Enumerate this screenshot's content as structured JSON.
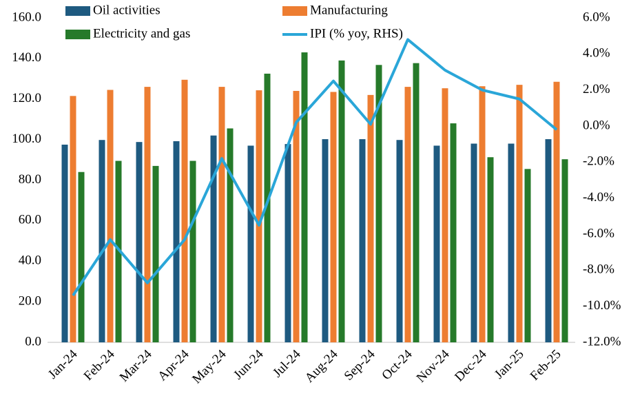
{
  "chart_data": {
    "type": "bar_line",
    "categories": [
      "Jan-24",
      "Feb-24",
      "Mar-24",
      "Apr-24",
      "May-24",
      "Jun-24",
      "Jul-24",
      "Aug-24",
      "Sep-24",
      "Oct-24",
      "Nov-24",
      "Dec-24",
      "Jan-25",
      "Feb-25"
    ],
    "series": [
      {
        "name": "Oil activities",
        "color": "#1e5a80",
        "type": "bar",
        "values": [
          97.5,
          99.8,
          98.8,
          99.2,
          102,
          97,
          97.8,
          100.2,
          100.2,
          99.8,
          97,
          98,
          98,
          100.2
        ]
      },
      {
        "name": "Manufacturing",
        "color": "#ed7d31",
        "type": "bar",
        "values": [
          121.5,
          124.5,
          126,
          129.5,
          126,
          124.3,
          124,
          123.5,
          122,
          126,
          125.3,
          126.3,
          127,
          128.5
        ]
      },
      {
        "name": "Electricity and gas",
        "color": "#267a2a",
        "type": "bar",
        "values": [
          84,
          89.5,
          87,
          89.5,
          105.5,
          132.5,
          143,
          139,
          136.8,
          137.7,
          108,
          91.3,
          85.5,
          90.3
        ]
      },
      {
        "name": "IPI (% yoy, RHS)",
        "color": "#2aa6d8",
        "type": "line",
        "axis": "y2",
        "values": [
          -9.4,
          -6.3,
          -8.7,
          -6.3,
          -1.8,
          -5.5,
          0.2,
          2.5,
          0.1,
          4.8,
          3.1,
          2.0,
          1.5,
          -0.2
        ]
      }
    ],
    "ylim": [
      0,
      160
    ],
    "yticks": [
      {
        "value": 0,
        "label": "0.0"
      },
      {
        "value": 20,
        "label": "20.0"
      },
      {
        "value": 40,
        "label": "40.0"
      },
      {
        "value": 60,
        "label": "60.0"
      },
      {
        "value": 80,
        "label": "80.0"
      },
      {
        "value": 100,
        "label": "100.0"
      },
      {
        "value": 120,
        "label": "120.0"
      },
      {
        "value": 140,
        "label": "140.0"
      },
      {
        "value": 160,
        "label": "160.0"
      }
    ],
    "y2lim": [
      -12,
      6
    ],
    "y2ticks": [
      {
        "value": -12,
        "label": "-12.0%"
      },
      {
        "value": -10,
        "label": "-10.0%"
      },
      {
        "value": -8,
        "label": "-8.0%"
      },
      {
        "value": -6,
        "label": "-6.0%"
      },
      {
        "value": -4,
        "label": "-4.0%"
      },
      {
        "value": -2,
        "label": "-2.0%"
      },
      {
        "value": 0,
        "label": "0.0%"
      },
      {
        "value": 2,
        "label": "2.0%"
      },
      {
        "value": 4,
        "label": "4.0%"
      },
      {
        "value": 6,
        "label": "6.0%"
      }
    ],
    "legend": "top"
  }
}
